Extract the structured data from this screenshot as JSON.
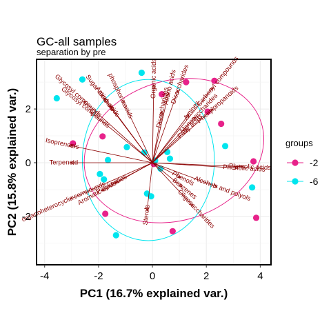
{
  "chart_data": {
    "type": "scatter",
    "title": "GC-all samples",
    "subtitle": "separation by pre",
    "xlabel": "PC1 (16.7% explained var.)",
    "ylabel": "PC2 (15.8% explained var.)",
    "xlim": [
      -4.3,
      4.4
    ],
    "ylim": [
      -3.8,
      3.85
    ],
    "x_ticks": [
      -4,
      -2,
      0,
      2,
      4
    ],
    "y_ticks": [
      -2,
      0,
      2
    ],
    "grid": true,
    "legend": {
      "title": "groups",
      "placement": "right"
    },
    "series": [
      {
        "name": "-2",
        "color": "#e7228a",
        "points": [
          [
            -2.95,
            0.72
          ],
          [
            -1.85,
            0.98
          ],
          [
            0.35,
            2.55
          ],
          [
            1.25,
            3.0
          ],
          [
            2.3,
            3.05
          ],
          [
            2.05,
            1.9
          ],
          [
            2.55,
            1.45
          ],
          [
            3.75,
            0.05
          ],
          [
            3.85,
            -2.05
          ],
          [
            0.75,
            -2.55
          ],
          [
            -1.75,
            -1.9
          ],
          [
            0.05,
            -0.05
          ]
        ]
      },
      {
        "name": "-6",
        "color": "#00e5ee",
        "points": [
          [
            -3.55,
            2.4
          ],
          [
            -2.6,
            3.1
          ],
          [
            -0.4,
            3.35
          ],
          [
            -1.65,
            0.1
          ],
          [
            -0.95,
            0.58
          ],
          [
            -0.3,
            0.38
          ],
          [
            -1.95,
            -0.42
          ],
          [
            -1.8,
            -0.62
          ],
          [
            -1.35,
            -2.7
          ],
          [
            -0.2,
            -1.15
          ],
          [
            -0.05,
            -1.25
          ],
          [
            0.55,
            0.4
          ],
          [
            0.65,
            0.15
          ],
          [
            2.7,
            0.62
          ],
          [
            3.7,
            -0.92
          ],
          [
            0.3,
            -0.22
          ],
          [
            0.1,
            0.08
          ]
        ]
      }
    ],
    "ellipses": [
      {
        "group": "-2",
        "cx": 0.8,
        "cy": 0.45,
        "rx": 3.4,
        "ry": 2.6,
        "angle_deg": -18
      },
      {
        "group": "-6",
        "cx": -0.15,
        "cy": 0.1,
        "rx": 2.45,
        "ry": 3.0,
        "angle_deg": 0
      }
    ],
    "loadings": [
      {
        "label": "Glycosyl compounds",
        "x": -2.55,
        "y": 2.3
      },
      {
        "label": "Glycosyl compounds",
        "x": -2.3,
        "y": 1.9
      },
      {
        "label": "Sugar alcohols",
        "x": -1.8,
        "y": 2.4
      },
      {
        "label": "Amino acids",
        "x": -1.55,
        "y": 2.1
      },
      {
        "label": "phosphoric acids",
        "x": -1.1,
        "y": 2.3
      },
      {
        "label": "Organic acids",
        "x": 0.05,
        "y": 2.9
      },
      {
        "label": "Amino acids",
        "x": 0.6,
        "y": 2.6
      },
      {
        "label": "Disaccharides",
        "x": 0.95,
        "y": 2.7
      },
      {
        "label": "Disaccharides",
        "x": 0.35,
        "y": 1.9
      },
      {
        "label": "Amines",
        "x": 1.35,
        "y": 1.8
      },
      {
        "label": "Monosaccharides",
        "x": 1.6,
        "y": 1.7
      },
      {
        "label": "Carbonyl compounds",
        "x": 2.25,
        "y": 2.8
      },
      {
        "label": "Fatty acids",
        "x": 1.3,
        "y": 1.25
      },
      {
        "label": "Phenylpropanoids",
        "x": 2.25,
        "y": 2.0
      },
      {
        "label": "Isoprenoids",
        "x": -3.1,
        "y": 0.65
      },
      {
        "label": "Terpenoid",
        "x": -3.05,
        "y": 0.0
      },
      {
        "label": "Phenolic acids",
        "x": 3.35,
        "y": -0.15
      },
      {
        "label": "Phenolic acids",
        "x": 3.15,
        "y": -0.2
      },
      {
        "label": "Phenols",
        "x": 1.05,
        "y": -0.55
      },
      {
        "label": "Benzenes",
        "x": 1.1,
        "y": -0.9
      },
      {
        "label": "Alcohols and polyols",
        "x": 2.4,
        "y": -0.9
      },
      {
        "label": "Aromatic acids",
        "x": -1.9,
        "y": -1.05
      },
      {
        "label": "Polyketides",
        "x": -1.4,
        "y": -0.75
      },
      {
        "label": "organoheterocyclic compounds",
        "x": -3.05,
        "y": -1.35
      },
      {
        "label": "Sterols",
        "x": -0.2,
        "y": -1.8
      },
      {
        "label": "Oligosaccharides",
        "x": 1.5,
        "y": -1.6
      }
    ]
  }
}
